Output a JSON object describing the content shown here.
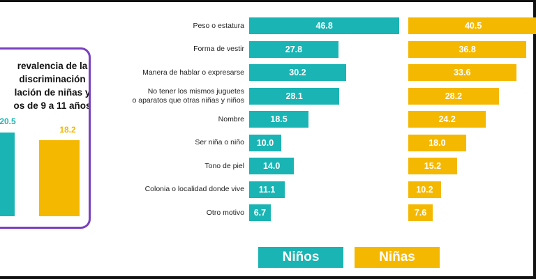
{
  "colors": {
    "ninos": "#1ab4b4",
    "ninas": "#f5b800",
    "inset_border": "#7a3fbf"
  },
  "inset": {
    "title": "revalencia de la\ndiscriminación\nlación de niñas y\nos de 9 a 11 años",
    "values": [
      {
        "label": "Niños",
        "value": "20.5"
      },
      {
        "label": "Niñas",
        "value": "18.2"
      }
    ]
  },
  "chart_data": {
    "type": "bar",
    "orientation": "horizontal",
    "categories": [
      "Peso o estatura",
      "Forma de vestir",
      "Manera de hablar o expresarse",
      "No tener los mismos juguetes\no aparatos que otras niñas y niños",
      "Nombre",
      "Ser niña o niño",
      "Tono de piel",
      "Colonia o localidad donde vive",
      "Otro motivo"
    ],
    "series": [
      {
        "name": "Niños",
        "values": [
          46.8,
          27.8,
          30.2,
          28.1,
          18.5,
          10.0,
          14.0,
          11.1,
          6.7
        ]
      },
      {
        "name": "Niñas",
        "values": [
          40.5,
          36.8,
          33.6,
          28.2,
          24.2,
          18.0,
          15.2,
          10.2,
          7.6
        ]
      }
    ],
    "labels": [
      [
        "46.8",
        "27.8",
        "30.2",
        "28.1",
        "18.5",
        "10.0",
        "14.0",
        "11.1",
        "6.7"
      ],
      [
        "40.5",
        "36.8",
        "33.6",
        "28.2",
        "24.2",
        "18.0",
        "15.2",
        "10.2",
        "7.6"
      ]
    ],
    "grid": false,
    "legend_position": "bottom"
  },
  "legend": [
    {
      "label": "Niños"
    },
    {
      "label": "Niñas"
    }
  ]
}
